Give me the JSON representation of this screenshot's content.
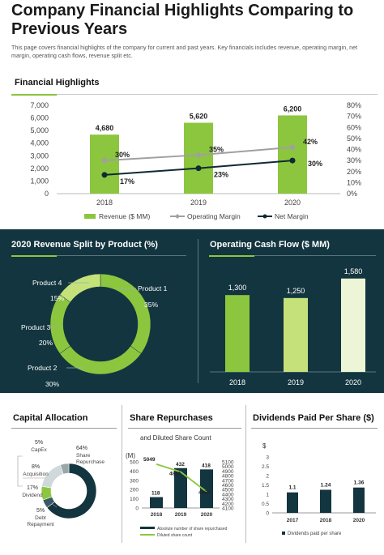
{
  "page": {
    "title": "Company Financial Highlights Comparing to Previous Years",
    "subtitle": "This page covers financial highlights of the company for current and past years. Key financials includes revenue, operating margin, net margin, operating cash flows, revenue split etc."
  },
  "colors": {
    "dark": "#13353f",
    "green": "#8cc63f",
    "lightgreen": "#c5e17a",
    "gray": "#a0a0a0",
    "navy": "#0f2a33"
  },
  "chart_data": [
    {
      "type": "bar",
      "title": "Financial Highlights",
      "categories": [
        "2018",
        "2019",
        "2020"
      ],
      "series": [
        {
          "name": "Revenue ($ MM)",
          "values": [
            4680,
            5620,
            6200
          ],
          "labels": [
            "4,680",
            "5,620",
            "6,200"
          ]
        },
        {
          "name": "Operating Margin",
          "values": [
            30,
            35,
            42
          ],
          "labels": [
            "30%",
            "35%",
            "42%"
          ],
          "type": "line"
        },
        {
          "name": "Net Margin",
          "values": [
            17,
            23,
            30
          ],
          "labels": [
            "17%",
            "23%",
            "30%"
          ],
          "type": "line"
        }
      ],
      "ylim": [
        0,
        7000
      ],
      "yticks": [
        "0",
        "1,000",
        "2,000",
        "3,000",
        "4,000",
        "5,000",
        "6,000",
        "7,000"
      ],
      "y2lim": [
        0,
        80
      ],
      "y2ticks": [
        "0%",
        "10%",
        "20%",
        "30%",
        "40%",
        "50%",
        "60%",
        "70%",
        "80%"
      ]
    },
    {
      "type": "pie",
      "title": "2020 Revenue Split by Product (%)",
      "slices": [
        {
          "name": "Product 1",
          "value": 35,
          "label": "35%"
        },
        {
          "name": "Product 2",
          "value": 30,
          "label": "30%"
        },
        {
          "name": "Product 3",
          "value": 20,
          "label": "20%"
        },
        {
          "name": "Product 4",
          "value": 15,
          "label": "15%"
        }
      ]
    },
    {
      "type": "bar",
      "title": "Operating Cash Flow ($ MM)",
      "categories": [
        "2018",
        "2019",
        "2020"
      ],
      "values": [
        1300,
        1250,
        1580
      ],
      "labels": [
        "1,300",
        "1,250",
        "1,580"
      ],
      "ylim": [
        0,
        1700
      ]
    },
    {
      "type": "pie",
      "title": "Capital  Allocation",
      "slices": [
        {
          "name": "Share Repurchase",
          "value": 64,
          "label": "64%"
        },
        {
          "name": "CapEx",
          "value": 5,
          "label": "5%"
        },
        {
          "name": "Acquisition",
          "value": 8,
          "label": "8%"
        },
        {
          "name": "Dividend",
          "value": 17,
          "label": "17%"
        },
        {
          "name": "Debt Repayment",
          "value": 5,
          "label": "5%"
        }
      ]
    },
    {
      "type": "bar",
      "title": "Share Repurchases",
      "subtitle": "and Diluted Share Count",
      "ylabel": "(M)",
      "categories": [
        "2018",
        "2019",
        "2020"
      ],
      "series": [
        {
          "name": "Absolute number of share repurchased",
          "values": [
            118,
            432,
            418
          ],
          "labels": [
            "118",
            "432",
            "418"
          ]
        },
        {
          "name": "Diluted share count",
          "values": [
            5049,
            4881,
            4453
          ],
          "labels": [
            "5049",
            "4881",
            "4453"
          ],
          "type": "line"
        }
      ],
      "ylim": [
        0,
        500
      ],
      "yticks": [
        "0",
        "100",
        "200",
        "300",
        "400",
        "500"
      ],
      "y2lim": [
        4100,
        5100
      ],
      "y2ticks": [
        "4100",
        "4200",
        "4300",
        "4400",
        "4500",
        "4600",
        "4700",
        "4800",
        "4900",
        "5000",
        "5100"
      ]
    },
    {
      "type": "bar",
      "title": "Dividends Paid Per Share ($)",
      "ylabel": "$",
      "categories": [
        "2017",
        "2018",
        "2020"
      ],
      "values": [
        1.1,
        1.24,
        1.36
      ],
      "labels": [
        "1.1",
        "1.24",
        "1.36"
      ],
      "ylim": [
        0,
        3
      ],
      "yticks": [
        "0",
        "0.5",
        "1",
        "1.5",
        "2",
        "2.5",
        "3"
      ],
      "legend": "Dividends paid per share"
    }
  ]
}
